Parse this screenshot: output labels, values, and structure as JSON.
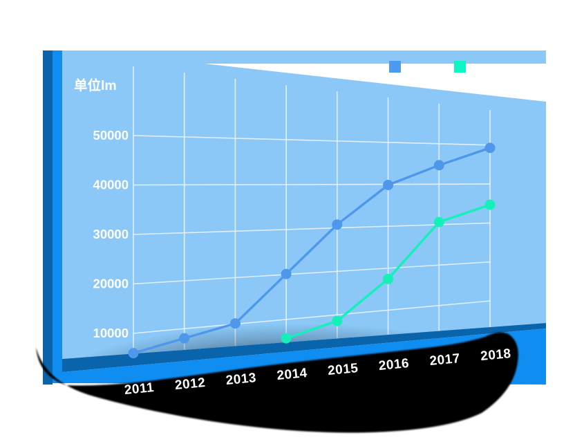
{
  "page": {
    "background": "#ffffff"
  },
  "panel": {
    "colors": {
      "panel_blue": "#8BC8F7",
      "edge_navy": "#0A64AC",
      "edge_bright": "#0F8DF0",
      "grid_line": "#E9F4FD",
      "shadow_black": "#000000",
      "label_text": "#FFFFFF"
    }
  },
  "legend": {
    "position": "top-right",
    "items": [
      {
        "label": "",
        "color": "#4E9AF0",
        "shape": "square"
      },
      {
        "label": "",
        "color": "#0DF5C4",
        "shape": "square"
      }
    ]
  },
  "chart_data": {
    "type": "line",
    "title": "",
    "unit_label": "单位lm",
    "categories": [
      "2011",
      "2012",
      "2013",
      "2014",
      "2015",
      "2016",
      "2017",
      "2018"
    ],
    "y_ticks": [
      "10000",
      "20000",
      "30000",
      "40000",
      "50000"
    ],
    "ylim": [
      0,
      55000
    ],
    "grid": "on",
    "legend_position": "top-right",
    "series": [
      {
        "name": "",
        "color": "#4E97EA",
        "values": [
          6000,
          9000,
          12000,
          22000,
          32000,
          40000,
          44000,
          47500
        ]
      },
      {
        "name": "",
        "color": "#14F0B8",
        "values": [
          null,
          null,
          null,
          9000,
          12500,
          21000,
          32500,
          36000
        ]
      }
    ]
  }
}
